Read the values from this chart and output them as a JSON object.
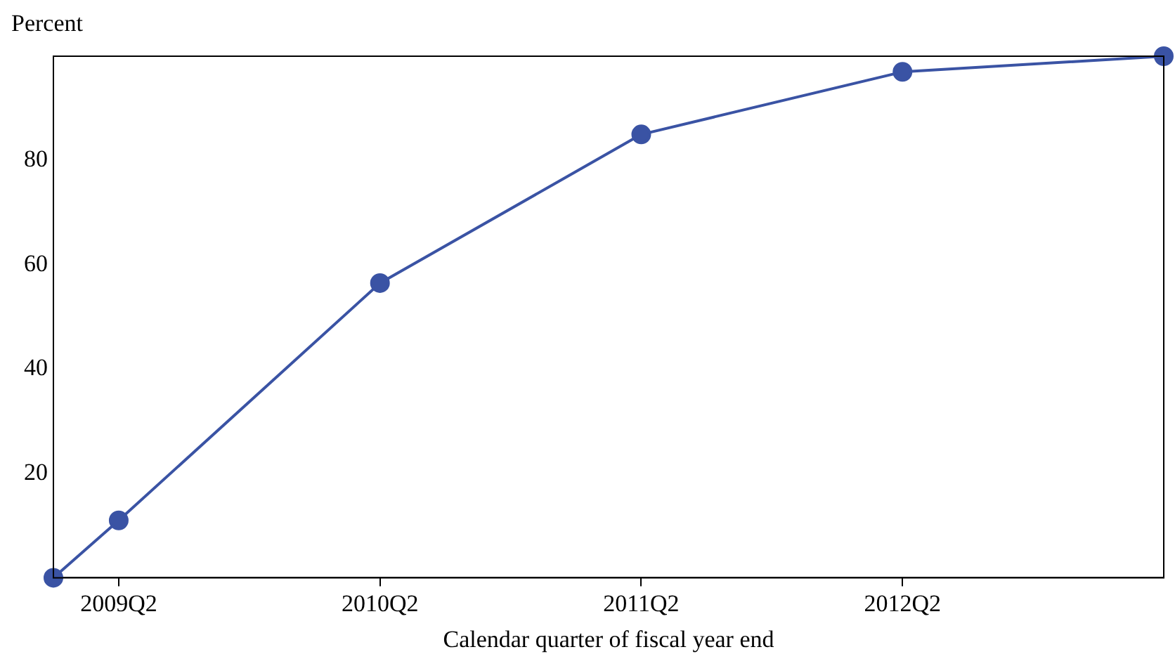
{
  "chart_data": {
    "type": "line",
    "ylabel": "Percent",
    "xlabel": "Calendar quarter of fiscal year end",
    "categories": [
      null,
      "2009Q2",
      null,
      null,
      null,
      "2010Q2",
      null,
      null,
      null,
      "2011Q2",
      null,
      null,
      null,
      "2012Q2",
      null,
      null,
      null,
      null
    ],
    "series": [
      {
        "color": "#3a53a4",
        "values": [
          0,
          11,
          null,
          null,
          null,
          56.5,
          null,
          null,
          null,
          85,
          null,
          null,
          null,
          97,
          null,
          null,
          null,
          100
        ]
      }
    ],
    "ylim": [
      0,
      100
    ],
    "yticks": [
      20,
      40,
      60,
      80
    ],
    "grid": false,
    "legend": false,
    "marker": "circle",
    "line_style": "solid"
  }
}
